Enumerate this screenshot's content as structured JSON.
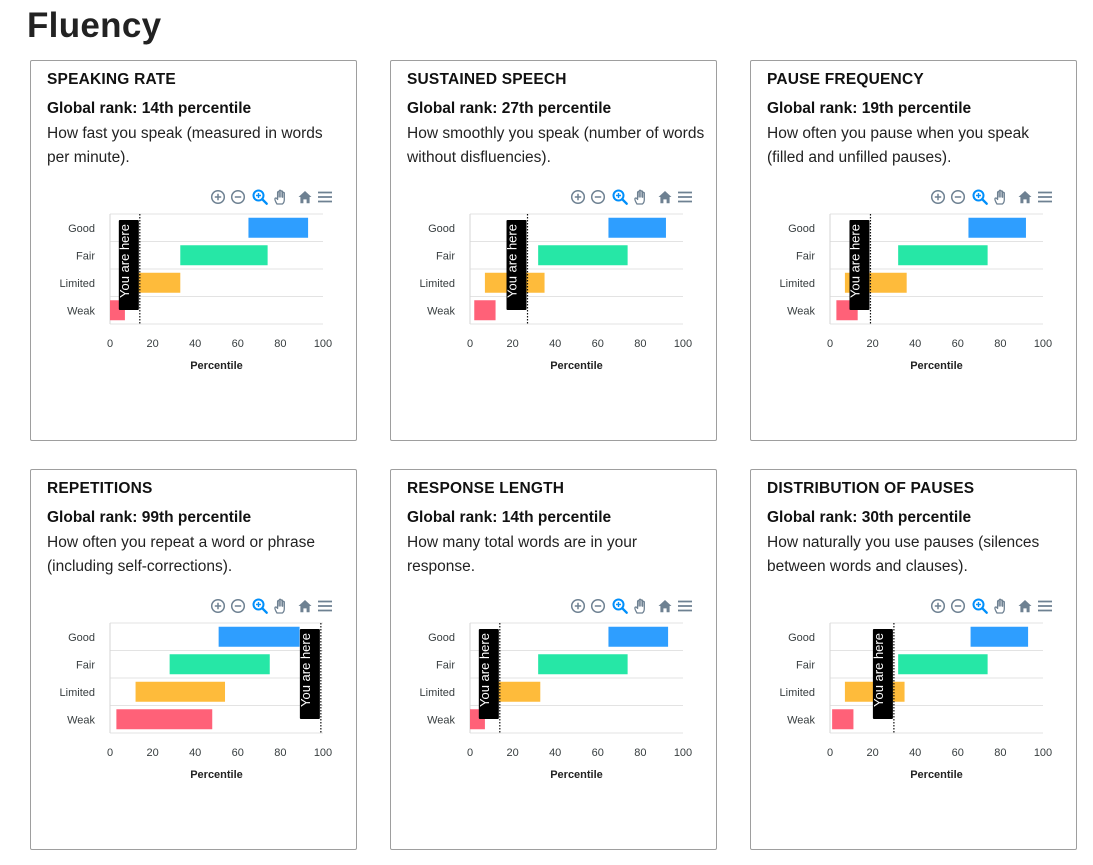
{
  "page": {
    "title": "Fluency"
  },
  "colors": {
    "good": "#2E9EFF",
    "fair": "#26E7A6",
    "limited": "#FEBB3B",
    "weak": "#FF6178",
    "marker_bg": "#000000",
    "marker_text": "#FFFFFF",
    "toolbar_icon": "#6E8192",
    "toolbar_active": "#008FFB"
  },
  "toolbar": {
    "icons": [
      "zoom-in-icon",
      "zoom-out-icon",
      "zoom-selection-icon",
      "pan-hand-icon",
      "reset-home-icon",
      "menu-icon"
    ]
  },
  "cards": [
    {
      "title": "SPEAKING RATE",
      "rank": "Global rank: 14th percentile",
      "description": "How fast you speak (measured in words per minute).",
      "chart": {
        "xlabel": "Percentile",
        "marker_label": "You are here",
        "marker": 14
      }
    },
    {
      "title": "SUSTAINED SPEECH",
      "rank": "Global rank: 27th percentile",
      "description": "How smoothly you speak (number of words without disfluencies).",
      "chart": {
        "xlabel": "Percentile",
        "marker_label": "You are here",
        "marker": 27
      }
    },
    {
      "title": "PAUSE FREQUENCY",
      "rank": "Global rank: 19th percentile",
      "description": "How often you pause when you speak (filled and unfilled pauses).",
      "chart": {
        "xlabel": "Percentile",
        "marker_label": "You are here",
        "marker": 19
      }
    },
    {
      "title": "REPETITIONS",
      "rank": "Global rank: 99th percentile",
      "description": "How often you repeat a word or phrase (including self-corrections).",
      "chart": {
        "xlabel": "Percentile",
        "marker_label": "You are here",
        "marker": 99
      }
    },
    {
      "title": "RESPONSE LENGTH",
      "rank": "Global rank: 14th percentile",
      "description": "How many total words are in your response.",
      "chart": {
        "xlabel": "Percentile",
        "marker_label": "You are here",
        "marker": 14
      }
    },
    {
      "title": "DISTRIBUTION OF PAUSES",
      "rank": "Global rank: 30th percentile",
      "description": "How naturally you use pauses (silences between words and clauses).",
      "chart": {
        "xlabel": "Percentile",
        "marker_label": "You are here",
        "marker": 30
      }
    }
  ],
  "chart_data": [
    {
      "type": "bar",
      "orientation": "horizontal",
      "title": "SPEAKING RATE",
      "xlabel": "Percentile",
      "categories": [
        "Good",
        "Fair",
        "Limited",
        "Weak"
      ],
      "ranges": [
        [
          65,
          93
        ],
        [
          33,
          74
        ],
        [
          12,
          33
        ],
        [
          0,
          7
        ]
      ],
      "xlim": [
        0,
        100
      ],
      "xticks": [
        0,
        20,
        40,
        60,
        80,
        100
      ],
      "annotation": {
        "text": "You are here",
        "x": 14
      }
    },
    {
      "type": "bar",
      "orientation": "horizontal",
      "title": "SUSTAINED SPEECH",
      "xlabel": "Percentile",
      "categories": [
        "Good",
        "Fair",
        "Limited",
        "Weak"
      ],
      "ranges": [
        [
          65,
          92
        ],
        [
          32,
          74
        ],
        [
          7,
          35
        ],
        [
          2,
          12
        ]
      ],
      "xlim": [
        0,
        100
      ],
      "xticks": [
        0,
        20,
        40,
        60,
        80,
        100
      ],
      "annotation": {
        "text": "You are here",
        "x": 27
      }
    },
    {
      "type": "bar",
      "orientation": "horizontal",
      "title": "PAUSE FREQUENCY",
      "xlabel": "Percentile",
      "categories": [
        "Good",
        "Fair",
        "Limited",
        "Weak"
      ],
      "ranges": [
        [
          65,
          92
        ],
        [
          32,
          74
        ],
        [
          7,
          36
        ],
        [
          3,
          13
        ]
      ],
      "xlim": [
        0,
        100
      ],
      "xticks": [
        0,
        20,
        40,
        60,
        80,
        100
      ],
      "annotation": {
        "text": "You are here",
        "x": 19
      }
    },
    {
      "type": "bar",
      "orientation": "horizontal",
      "title": "REPETITIONS",
      "xlabel": "Percentile",
      "categories": [
        "Good",
        "Fair",
        "Limited",
        "Weak"
      ],
      "ranges": [
        [
          51,
          89
        ],
        [
          28,
          75
        ],
        [
          12,
          54
        ],
        [
          3,
          48
        ]
      ],
      "xlim": [
        0,
        100
      ],
      "xticks": [
        0,
        20,
        40,
        60,
        80,
        100
      ],
      "annotation": {
        "text": "You are here",
        "x": 99
      }
    },
    {
      "type": "bar",
      "orientation": "horizontal",
      "title": "RESPONSE LENGTH",
      "xlabel": "Percentile",
      "categories": [
        "Good",
        "Fair",
        "Limited",
        "Weak"
      ],
      "ranges": [
        [
          65,
          93
        ],
        [
          32,
          74
        ],
        [
          10,
          33
        ],
        [
          0,
          7
        ]
      ],
      "xlim": [
        0,
        100
      ],
      "xticks": [
        0,
        20,
        40,
        60,
        80,
        100
      ],
      "annotation": {
        "text": "You are here",
        "x": 14
      }
    },
    {
      "type": "bar",
      "orientation": "horizontal",
      "title": "DISTRIBUTION OF PAUSES",
      "xlabel": "Percentile",
      "categories": [
        "Good",
        "Fair",
        "Limited",
        "Weak"
      ],
      "ranges": [
        [
          66,
          93
        ],
        [
          32,
          74
        ],
        [
          7,
          35
        ],
        [
          1,
          11
        ]
      ],
      "xlim": [
        0,
        100
      ],
      "xticks": [
        0,
        20,
        40,
        60,
        80,
        100
      ],
      "annotation": {
        "text": "You are here",
        "x": 30
      }
    }
  ]
}
